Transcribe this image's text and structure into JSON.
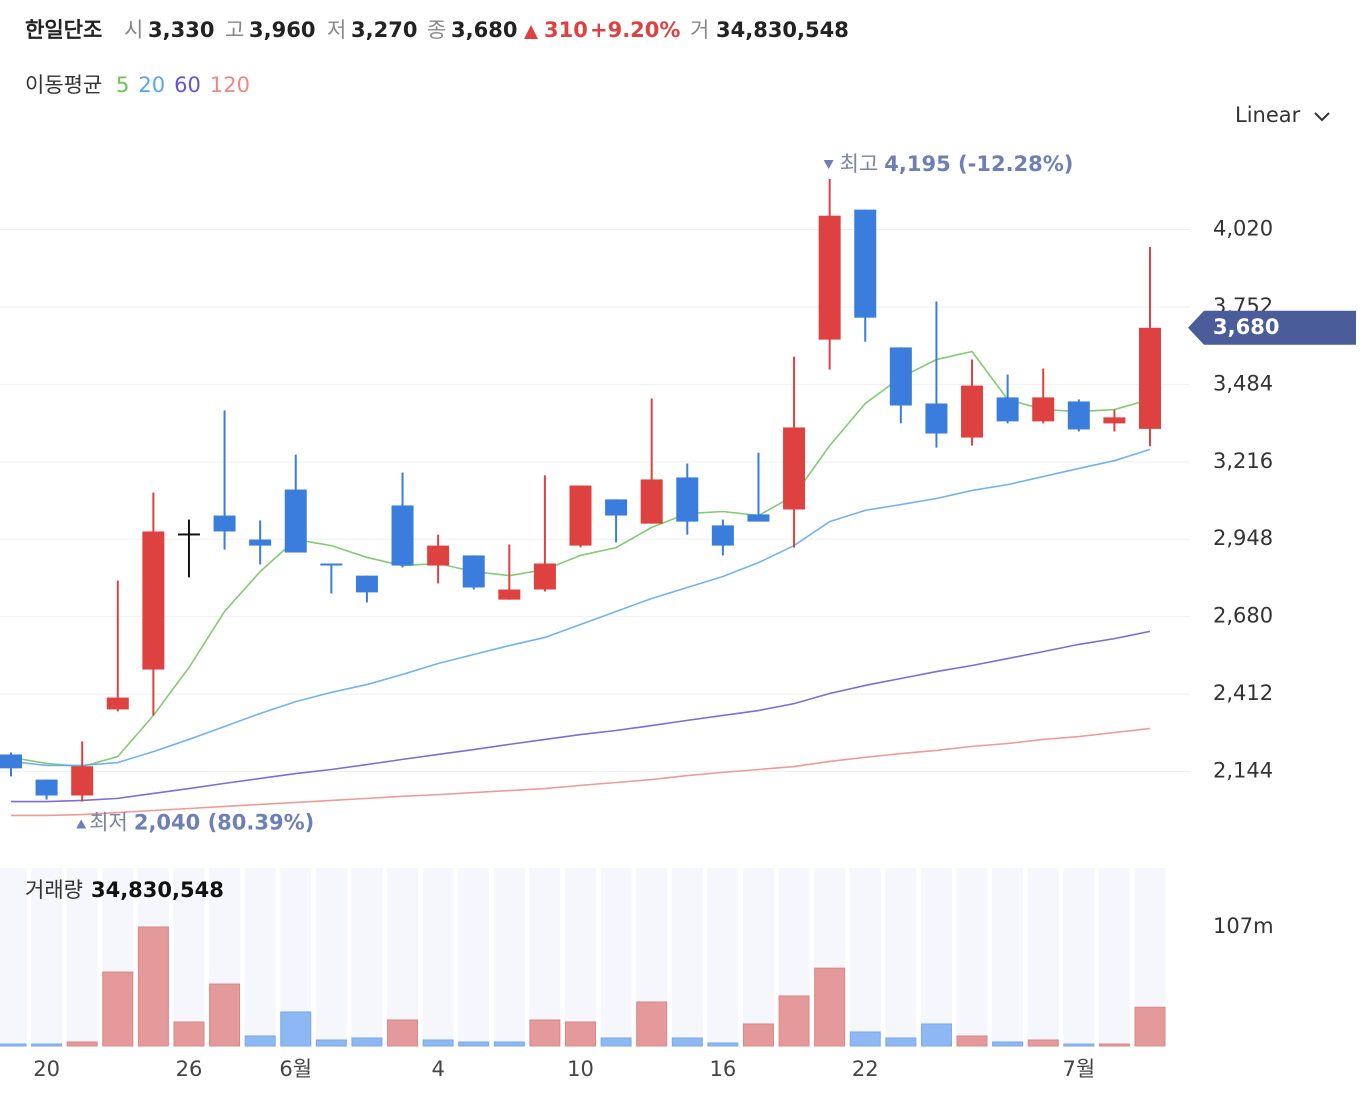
{
  "header": {
    "title": "한일단조",
    "items": [
      {
        "label": "시",
        "value": "3,330"
      },
      {
        "label": "고",
        "value": "3,960"
      },
      {
        "label": "저",
        "value": "3,270"
      },
      {
        "label": "종",
        "value": "3,680"
      }
    ],
    "change": "310",
    "change_pct": "+9.20%",
    "volume_label": "거",
    "volume": "34,830,548"
  },
  "scale_mode": "Linear",
  "chart_data": [
    {
      "type": "candlestick",
      "categories": [
        null,
        "20",
        null,
        null,
        null,
        "26",
        null,
        null,
        "6월",
        null,
        null,
        null,
        "4",
        null,
        null,
        null,
        "10",
        null,
        null,
        null,
        "16",
        null,
        null,
        null,
        "22",
        null,
        null,
        null,
        null,
        null,
        "7월",
        null,
        null
      ],
      "open": [
        2203,
        2116,
        2061,
        2359,
        2497,
        2968,
        3030,
        2947,
        3120,
        2864,
        2822,
        3065,
        2857,
        2892,
        2739,
        2774,
        2926,
        3086,
        3002,
        3162,
        2996,
        3034,
        3051,
        3639,
        4089,
        3612,
        3418,
        3300,
        3439,
        3356,
        3425,
        3349,
        3330
      ],
      "high": [
        2210,
        2116,
        2248,
        2805,
        3110,
        3016,
        3394,
        3013,
        3241,
        2864,
        2822,
        3179,
        2964,
        2892,
        2930,
        3169,
        3134,
        3086,
        3435,
        3210,
        3016,
        3248,
        3580,
        4195,
        4089,
        3612,
        3771,
        3570,
        3518,
        3539,
        3432,
        3397,
        3960
      ],
      "low": [
        2127,
        2047,
        2040,
        2352,
        2338,
        2816,
        2912,
        2861,
        2902,
        2760,
        2729,
        2850,
        2795,
        2774,
        2739,
        2767,
        2920,
        2937,
        3002,
        2964,
        2892,
        3009,
        2919,
        3535,
        3632,
        3349,
        3265,
        3272,
        3349,
        3349,
        3321,
        3321,
        3270
      ],
      "close": [
        2155,
        2061,
        2162,
        2400,
        2975,
        2968,
        2975,
        2926,
        2902,
        2860,
        2764,
        2857,
        2926,
        2781,
        2774,
        2864,
        3134,
        3030,
        3155,
        3009,
        2926,
        3009,
        3335,
        4068,
        3715,
        3411,
        3314,
        3480,
        3356,
        3439,
        3328,
        3370,
        3680
      ],
      "up_color": "#dd4240",
      "down_color": "#3b7ddd",
      "flat_color": "#111111",
      "ylim": [
        1900,
        4330
      ],
      "yticks": [
        {
          "value": 2144,
          "label": "2,144"
        },
        {
          "value": 2412,
          "label": "2,412"
        },
        {
          "value": 2680,
          "label": "2,680"
        },
        {
          "value": 2948,
          "label": "2,948"
        },
        {
          "value": 3216,
          "label": "3,216"
        },
        {
          "value": 3484,
          "label": "3,484"
        },
        {
          "value": 3752,
          "label": "3,752"
        },
        {
          "value": 4020,
          "label": "4,020"
        }
      ],
      "grid": true,
      "moving_averages": {
        "title": "이동평균",
        "series": [
          {
            "name": "5",
            "color": "#6cc35a",
            "values": [
              2193,
              2172,
              2161,
              2196,
              2338,
              2504,
              2698,
              2836,
              2947,
              2926,
              2885,
              2857,
              2864,
              2836,
              2822,
              2843,
              2892,
              2919,
              2989,
              3037,
              3044,
              3030,
              3099,
              3272,
              3418,
              3508,
              3570,
              3598,
              3432,
              3397,
              3390,
              3397,
              3432
            ]
          },
          {
            "name": "20",
            "color": "#5aa5f0",
            "values": [
              2179,
              2165,
              2165,
              2175,
              2213,
              2255,
              2300,
              2345,
              2386,
              2418,
              2445,
              2480,
              2518,
              2549,
              2580,
              2608,
              2653,
              2698,
              2743,
              2781,
              2819,
              2867,
              2926,
              3009,
              3048,
              3068,
              3089,
              3117,
              3137,
              3165,
              3193,
              3220,
              3259
            ]
          },
          {
            "name": "60",
            "color": "#6a52cf",
            "values": [
              2040,
              2040,
              2044,
              2051,
              2068,
              2085,
              2103,
              2120,
              2137,
              2151,
              2168,
              2186,
              2203,
              2220,
              2238,
              2255,
              2272,
              2286,
              2303,
              2321,
              2338,
              2355,
              2379,
              2414,
              2442,
              2466,
              2490,
              2511,
              2535,
              2559,
              2584,
              2604,
              2629
            ]
          },
          {
            "name": "120",
            "color": "#ec8a82",
            "values": [
              1992,
              1992,
              1995,
              2002,
              2009,
              2016,
              2023,
              2030,
              2037,
              2044,
              2051,
              2058,
              2064,
              2071,
              2078,
              2085,
              2096,
              2106,
              2116,
              2130,
              2141,
              2151,
              2161,
              2179,
              2193,
              2206,
              2217,
              2231,
              2241,
              2255,
              2265,
              2279,
              2293
            ]
          }
        ]
      },
      "max_marker": {
        "label": "최고",
        "text": "4,195 (-12.28%)"
      },
      "min_marker": {
        "label": "최저",
        "text": "2,040 (80.39%)"
      },
      "last_price": "3,680"
    },
    {
      "type": "bar",
      "title": "거래량",
      "subtitle": "34,830,548",
      "values": [
        1800000,
        1800000,
        3600000,
        66500000,
        107000000,
        21600000,
        55700000,
        9000000,
        30600000,
        5400000,
        7200000,
        23400000,
        5400000,
        3600000,
        3600000,
        23400000,
        21600000,
        7200000,
        39600000,
        7200000,
        2700000,
        19800000,
        45000000,
        70000000,
        12600000,
        7200000,
        19800000,
        9000000,
        3600000,
        5400000,
        1800000,
        1800000,
        34830548
      ],
      "colors": [
        "#8db8f3",
        "#8db8f3",
        "#e49a9a",
        "#e49a9a",
        "#e49a9a",
        "#e49a9a",
        "#e49a9a",
        "#8db8f3",
        "#8db8f3",
        "#8db8f3",
        "#8db8f3",
        "#e49a9a",
        "#8db8f3",
        "#8db8f3",
        "#8db8f3",
        "#e49a9a",
        "#e49a9a",
        "#8db8f3",
        "#e49a9a",
        "#8db8f3",
        "#8db8f3",
        "#e49a9a",
        "#e49a9a",
        "#e49a9a",
        "#8db8f3",
        "#8db8f3",
        "#8db8f3",
        "#e49a9a",
        "#8db8f3",
        "#e49a9a",
        "#8db8f3",
        "#e49a9a",
        "#e49a9a"
      ],
      "ylim": [
        0,
        107000000
      ],
      "yticks": [
        {
          "value": 107000000,
          "label": "107m"
        }
      ]
    }
  ]
}
